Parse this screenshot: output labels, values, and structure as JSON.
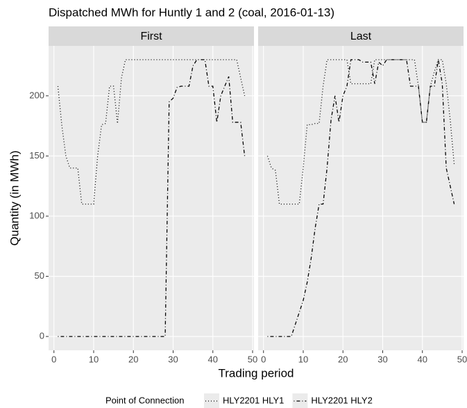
{
  "chart_data": {
    "type": "line",
    "title": "Dispatched MWh for Huntly 1 and 2 (coal, 2016-01-13)",
    "xlabel": "Trading period",
    "ylabel": "Quantity (in MWh)",
    "legend_title": "Point of Connection",
    "legend": "bottom",
    "grid": true,
    "x": [
      1,
      2,
      3,
      4,
      5,
      6,
      7,
      8,
      9,
      10,
      11,
      12,
      13,
      14,
      15,
      16,
      17,
      18,
      19,
      20,
      21,
      22,
      23,
      24,
      25,
      26,
      27,
      28,
      29,
      30,
      31,
      32,
      33,
      34,
      35,
      36,
      37,
      38,
      39,
      40,
      41,
      42,
      43,
      44,
      45,
      46,
      47,
      48
    ],
    "xlim": [
      -1.35,
      50.35
    ],
    "xticks": [
      0,
      10,
      20,
      30,
      40,
      50
    ],
    "ylim": [
      -11.5,
      241.5
    ],
    "yticks": [
      0,
      50,
      100,
      150,
      200
    ],
    "series": [
      {
        "name": "HLY2201 HLY1",
        "color": "#000000",
        "linetype": "dotted"
      },
      {
        "name": "HLY2201 HLY2",
        "color": "#000000",
        "linetype": "dotdash"
      }
    ],
    "facets": [
      {
        "label": "First",
        "series": [
          {
            "values": [
              208,
              175,
              150,
              140,
              140,
              140,
              110,
              110,
              110,
              110,
              150,
              176,
              177,
              208,
              208,
              177,
              215,
              230,
              230,
              230,
              230,
              230,
              230,
              230,
              230,
              230,
              230,
              230,
              230,
              230,
              230,
              230,
              230,
              230,
              230,
              230,
              230,
              230,
              230,
              230,
              230,
              230,
              230,
              230,
              230,
              230,
              215,
              200
            ]
          },
          {
            "values": [
              0,
              0,
              0,
              0,
              0,
              0,
              0,
              0,
              0,
              0,
              0,
              0,
              0,
              0,
              0,
              0,
              0,
              0,
              0,
              0,
              0,
              0,
              0,
              0,
              0,
              0,
              0,
              0,
              195,
              198,
              207,
              208,
              208,
              208,
              225,
              230,
              230,
              230,
              208,
              208,
              178,
              200,
              208,
              216,
              178,
              178,
              178,
              150
            ]
          }
        ]
      },
      {
        "label": "Last",
        "series": [
          {
            "values": [
              150,
              140,
              138,
              110,
              110,
              110,
              110,
              110,
              110,
              140,
              176,
              176,
              177,
              177,
              208,
              230,
              230,
              230,
              230,
              230,
              230,
              210,
              210,
              210,
              210,
              210,
              210,
              230,
              230,
              230,
              230,
              230,
              230,
              230,
              230,
              230,
              230,
              230,
              208,
              178,
              178,
              208,
              220,
              230,
              230,
              210,
              180,
              143
            ]
          },
          {
            "values": [
              0,
              0,
              0,
              0,
              0,
              0,
              0,
              10,
              20,
              30,
              45,
              65,
              90,
              110,
              110,
              140,
              180,
              200,
              178,
              200,
              208,
              230,
              230,
              230,
              228,
              228,
              228,
              210,
              228,
              225,
              230,
              230,
              230,
              230,
              230,
              230,
              208,
              208,
              208,
              178,
              178,
              208,
              208,
              230,
              210,
              140,
              125,
              110
            ]
          }
        ]
      }
    ]
  }
}
